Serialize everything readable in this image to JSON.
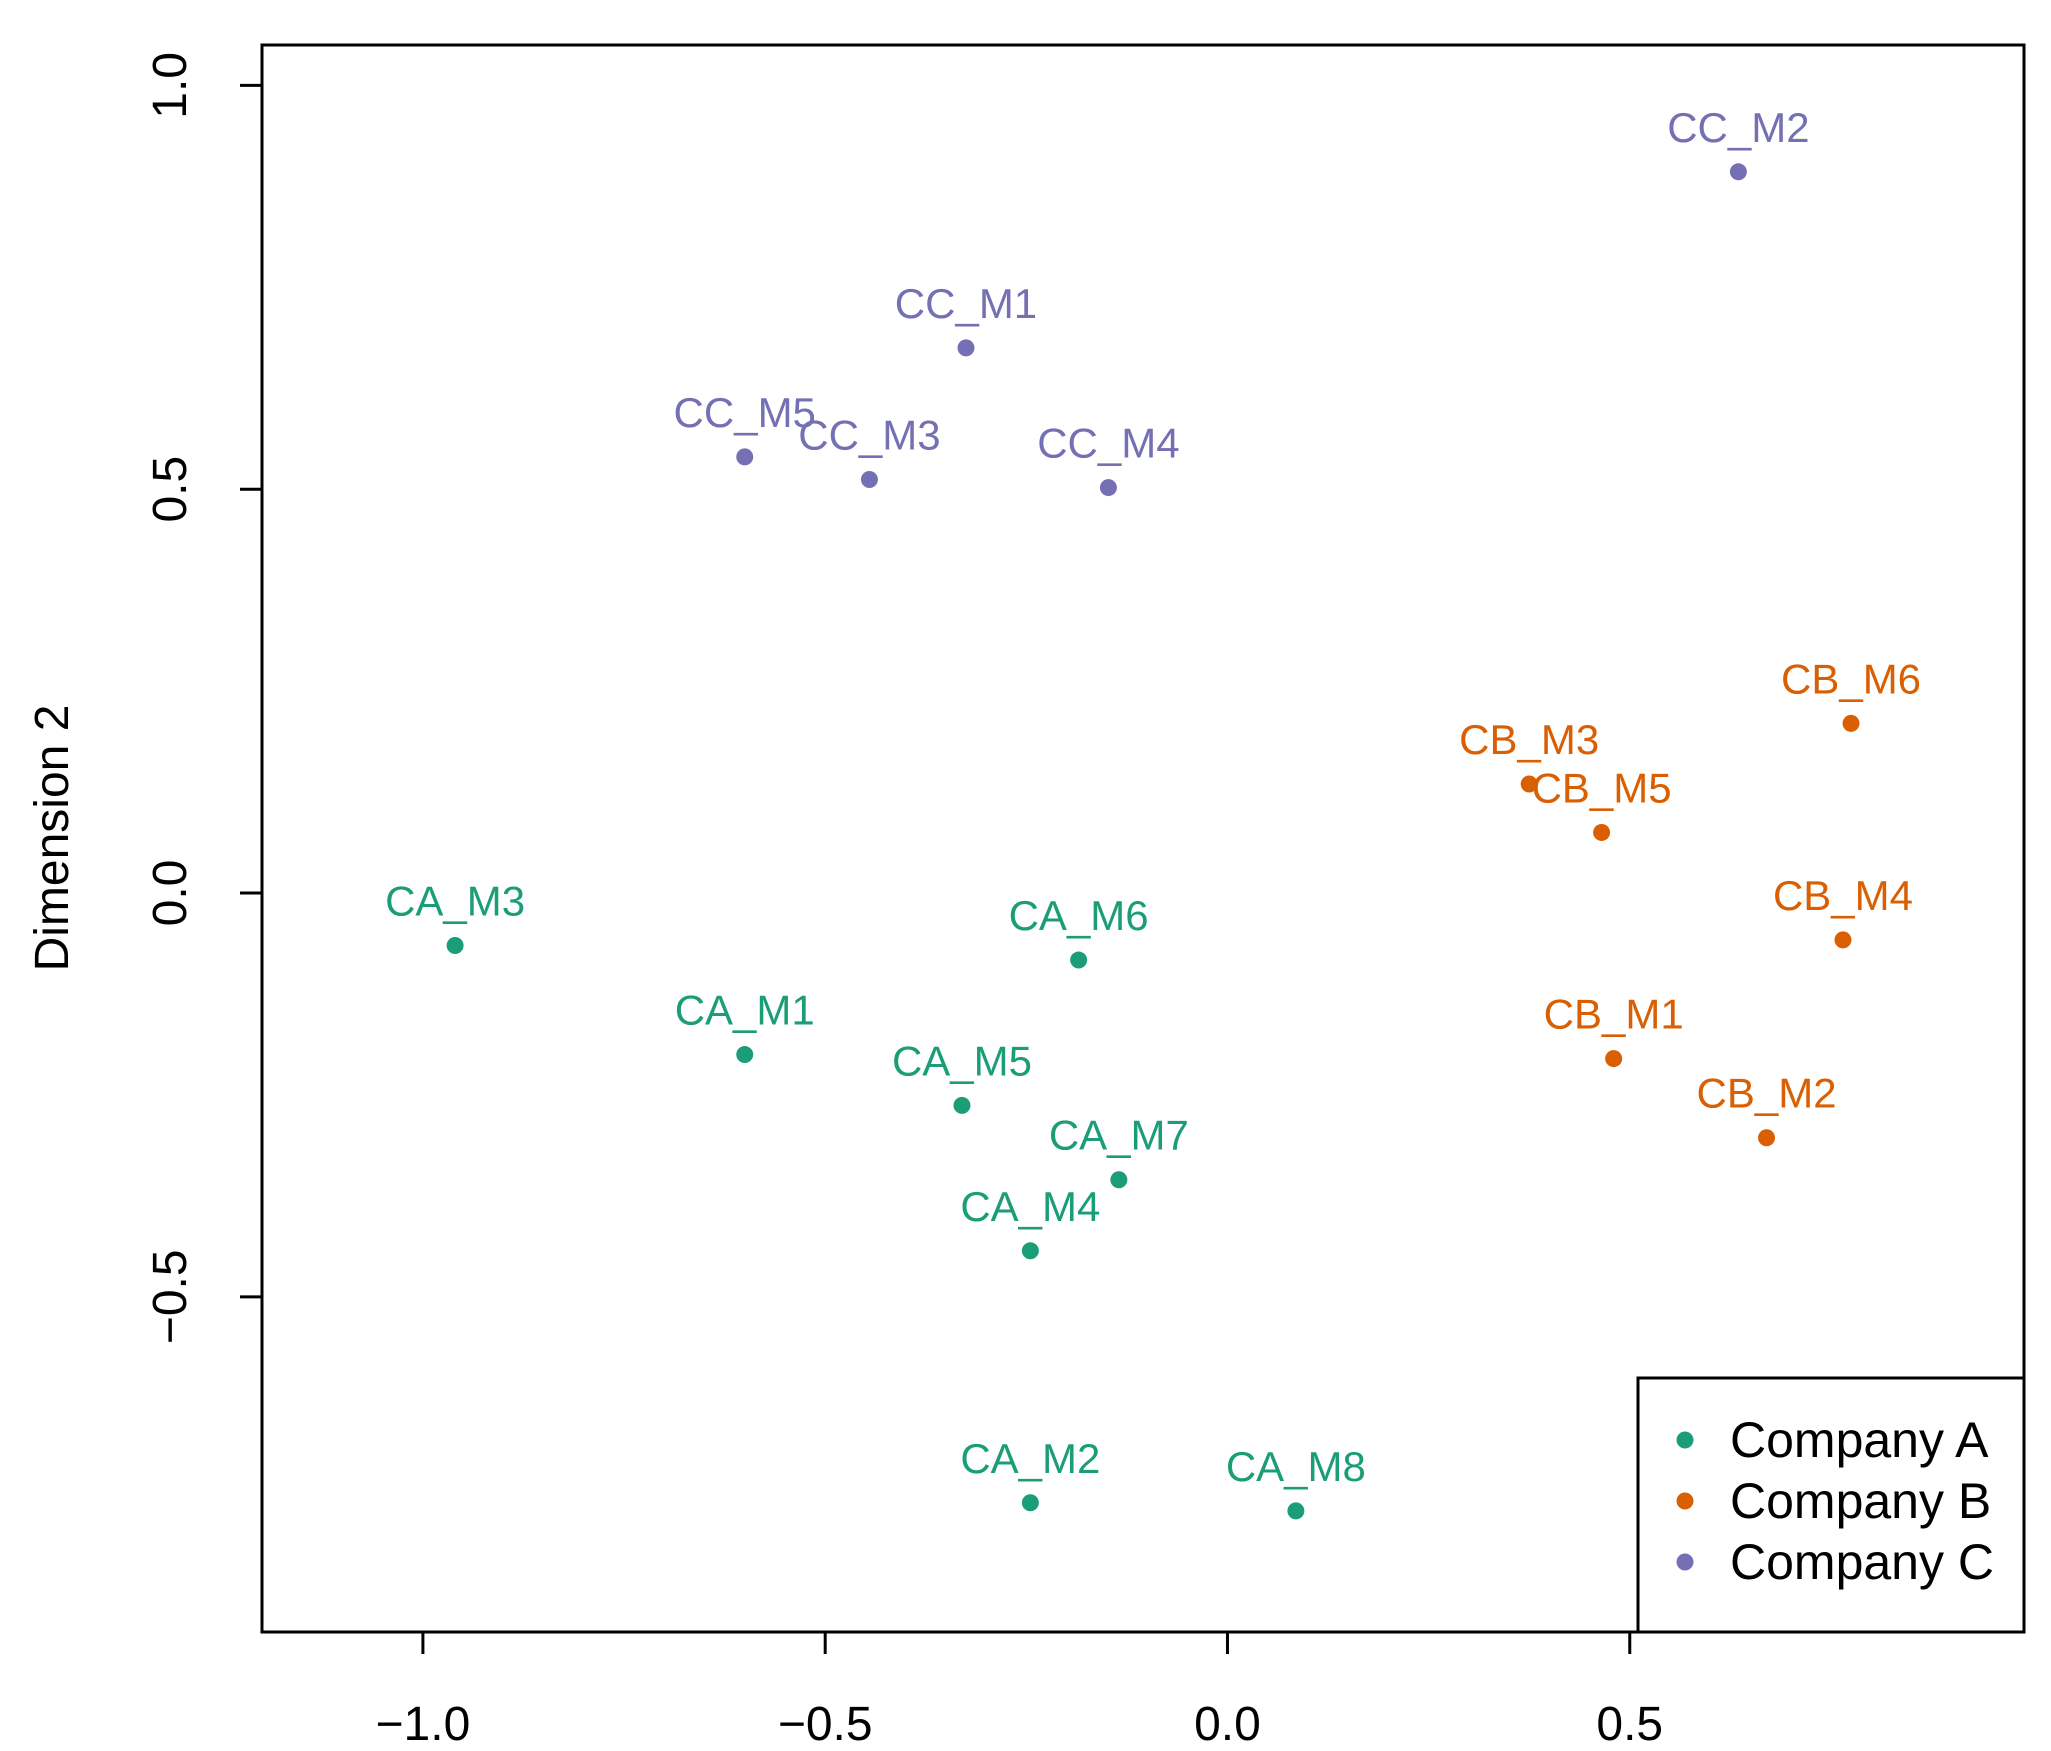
{
  "chart_data": {
    "type": "scatter",
    "title": "",
    "xlabel": "",
    "ylabel": "Dimension 2",
    "xlim": [
      -1.2,
      0.99
    ],
    "ylim": [
      -0.915,
      1.05
    ],
    "xticks": [
      {
        "value": -1.0,
        "label": "−1.0"
      },
      {
        "value": -0.5,
        "label": "−0.5"
      },
      {
        "value": 0.0,
        "label": "0.0"
      },
      {
        "value": 0.5,
        "label": "0.5"
      }
    ],
    "yticks": [
      {
        "value": -0.5,
        "label": "−0.5"
      },
      {
        "value": 0.0,
        "label": "0.0"
      },
      {
        "value": 0.5,
        "label": "0.5"
      },
      {
        "value": 1.0,
        "label": "1.0"
      }
    ],
    "legend_position": "bottom-right",
    "series": [
      {
        "name": "Company A",
        "color": "#1b9e77",
        "points": [
          {
            "label": "CA_M1",
            "x": -0.6,
            "y": -0.2
          },
          {
            "label": "CA_M2",
            "x": -0.245,
            "y": -0.755
          },
          {
            "label": "CA_M3",
            "x": -0.96,
            "y": -0.065
          },
          {
            "label": "CA_M4",
            "x": -0.245,
            "y": -0.443
          },
          {
            "label": "CA_M5",
            "x": -0.33,
            "y": -0.263
          },
          {
            "label": "CA_M6",
            "x": -0.185,
            "y": -0.083
          },
          {
            "label": "CA_M7",
            "x": -0.135,
            "y": -0.355
          },
          {
            "label": "CA_M8",
            "x": 0.085,
            "y": -0.765
          }
        ]
      },
      {
        "name": "Company B",
        "color": "#d95f02",
        "points": [
          {
            "label": "CB_M1",
            "x": 0.48,
            "y": -0.205
          },
          {
            "label": "CB_M2",
            "x": 0.67,
            "y": -0.303
          },
          {
            "label": "CB_M3",
            "x": 0.375,
            "y": 0.135
          },
          {
            "label": "CB_M4",
            "x": 0.765,
            "y": -0.058
          },
          {
            "label": "CB_M5",
            "x": 0.465,
            "y": 0.075
          },
          {
            "label": "CB_M6",
            "x": 0.775,
            "y": 0.21
          }
        ]
      },
      {
        "name": "Company C",
        "color": "#7570b3",
        "points": [
          {
            "label": "CC_M1",
            "x": -0.325,
            "y": 0.675
          },
          {
            "label": "CC_M2",
            "x": 0.635,
            "y": 0.893
          },
          {
            "label": "CC_M3",
            "x": -0.445,
            "y": 0.512
          },
          {
            "label": "CC_M4",
            "x": -0.148,
            "y": 0.502
          },
          {
            "label": "CC_M5",
            "x": -0.6,
            "y": 0.54
          }
        ]
      }
    ]
  }
}
